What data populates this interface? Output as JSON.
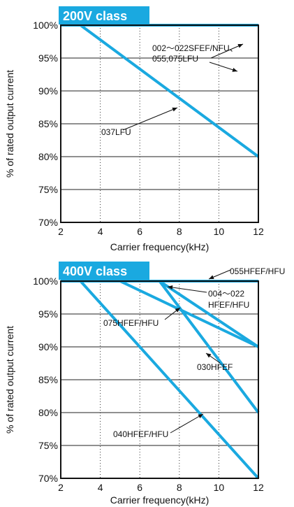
{
  "chart_data": [
    {
      "type": "line",
      "title": "200V class",
      "xlabel": "Carrier frequency(kHz)",
      "ylabel": "% of rated output current",
      "xlim": [
        2,
        12
      ],
      "ylim": [
        70,
        100
      ],
      "x_ticks": [
        "2",
        "4",
        "6",
        "8",
        "10",
        "12"
      ],
      "y_ticks": [
        "70%",
        "75%",
        "80%",
        "85%",
        "90%",
        "95%",
        "100%"
      ],
      "grid": "vertical dotted at 4,6,8,10 kHz; horizontal solid at each 5%",
      "accent_color": "#1aa9e0",
      "series": [
        {
          "x": [
            2,
            12
          ],
          "y": [
            100,
            100
          ]
        },
        {
          "x": [
            2,
            3,
            12
          ],
          "y": [
            100,
            100,
            80
          ]
        }
      ],
      "annotations": [
        {
          "text_lines": [
            "002～022SFEF/NFU、",
            "055,075LFU"
          ]
        },
        {
          "text_lines": [
            "037LFU"
          ]
        }
      ]
    },
    {
      "type": "line",
      "title": "400V class",
      "xlabel": "Carrier frequency(kHz)",
      "ylabel": "% of rated output current",
      "xlim": [
        2,
        12
      ],
      "ylim": [
        70,
        100
      ],
      "x_ticks": [
        "2",
        "4",
        "6",
        "8",
        "10",
        "12"
      ],
      "y_ticks": [
        "70%",
        "75%",
        "80%",
        "85%",
        "90%",
        "95%",
        "100%"
      ],
      "grid": "vertical dotted at 4,6,8,10 kHz; horizontal solid at each 5%",
      "accent_color": "#1aa9e0",
      "series": [
        {
          "x": [
            2,
            12
          ],
          "y": [
            100,
            100
          ]
        },
        {
          "x": [
            2,
            7,
            12
          ],
          "y": [
            100,
            100,
            90
          ]
        },
        {
          "x": [
            2,
            5,
            12
          ],
          "y": [
            100,
            100,
            90
          ]
        },
        {
          "x": [
            2,
            7,
            12
          ],
          "y": [
            100,
            100,
            80
          ]
        },
        {
          "x": [
            2,
            3,
            12
          ],
          "y": [
            100,
            100,
            70
          ]
        }
      ],
      "annotations": [
        {
          "text_lines": [
            "055HFEF/HFU"
          ]
        },
        {
          "text_lines": [
            "004～022",
            "HFEF/HFU"
          ]
        },
        {
          "text_lines": [
            "075HFEF/HFU"
          ]
        },
        {
          "text_lines": [
            "030HFEF"
          ]
        },
        {
          "text_lines": [
            "040HFEF/HFU"
          ]
        }
      ]
    }
  ]
}
